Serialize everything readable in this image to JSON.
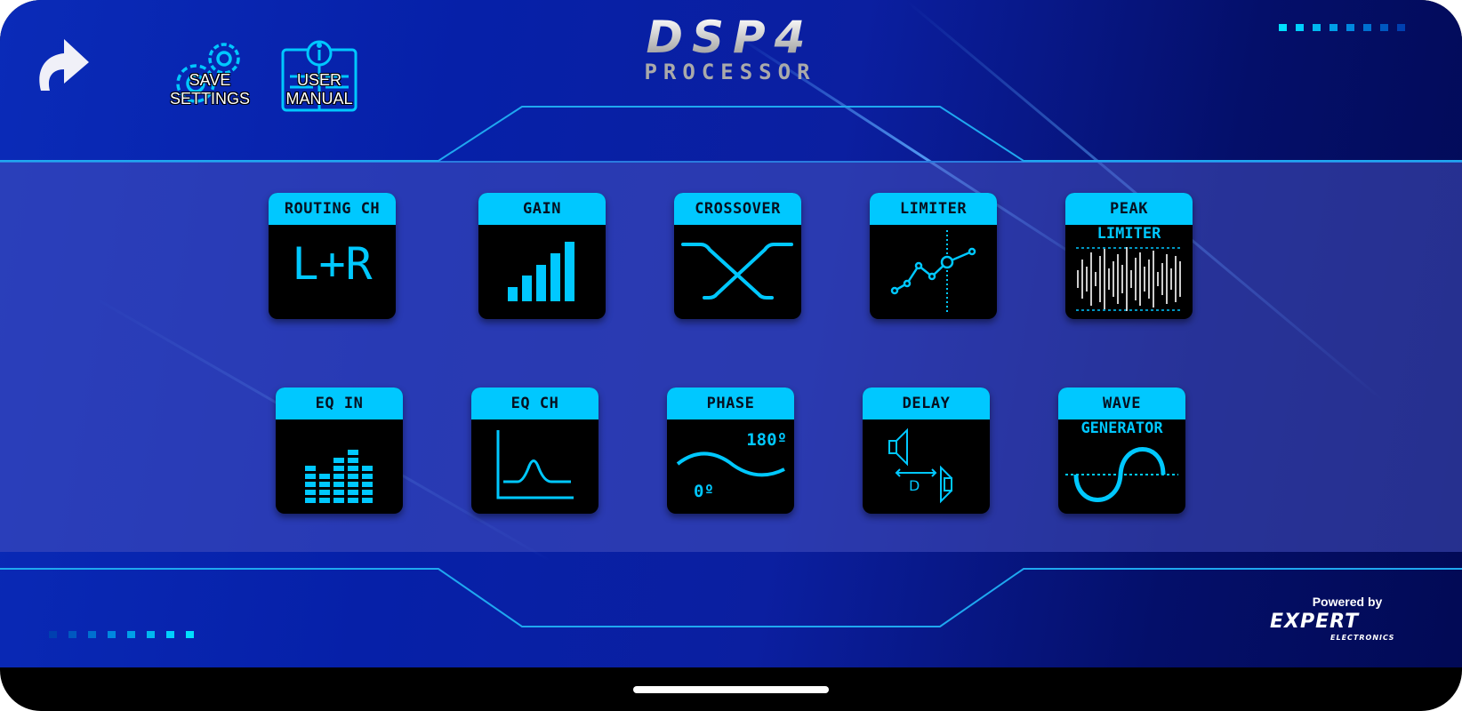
{
  "header": {
    "logo_title": "DSP4",
    "logo_subtitle": "PROCESSOR",
    "back_icon": "curved-arrow-icon",
    "save_settings": {
      "line1": "SAVE",
      "line2": "SETTINGS",
      "icon": "gears-icon"
    },
    "user_manual": {
      "line1": "USER",
      "line2": "MANUAL",
      "icon": "info-book-icon"
    }
  },
  "tiles_row1": [
    {
      "title": "ROUTING CH",
      "content": "L+R"
    },
    {
      "title": "GAIN",
      "icon": "bar-signal-icon"
    },
    {
      "title": "CROSSOVER",
      "icon": "crossover-curve-icon"
    },
    {
      "title": "LIMITER",
      "icon": "limiter-graph-icon"
    },
    {
      "title": "PEAK",
      "subtitle": "LIMITER",
      "icon": "waveform-icon"
    }
  ],
  "tiles_row2": [
    {
      "title": "EQ IN",
      "icon": "equalizer-bars-icon"
    },
    {
      "title": "EQ CH",
      "icon": "eq-curve-icon"
    },
    {
      "title": "PHASE",
      "label_high": "180º",
      "label_low": "0º",
      "icon": "phase-wave-icon"
    },
    {
      "title": "DELAY",
      "label": "D",
      "icon": "speaker-delay-icon"
    },
    {
      "title": "WAVE",
      "subtitle": "GENERATOR",
      "icon": "sine-wave-icon"
    }
  ],
  "footer": {
    "powered_by": "Powered by",
    "brand_main": "EXPERT",
    "brand_sub": "ELECTRONICS"
  },
  "colors": {
    "accent": "#00c8ff",
    "tile_bg": "#000000",
    "background": "#0620a8"
  }
}
